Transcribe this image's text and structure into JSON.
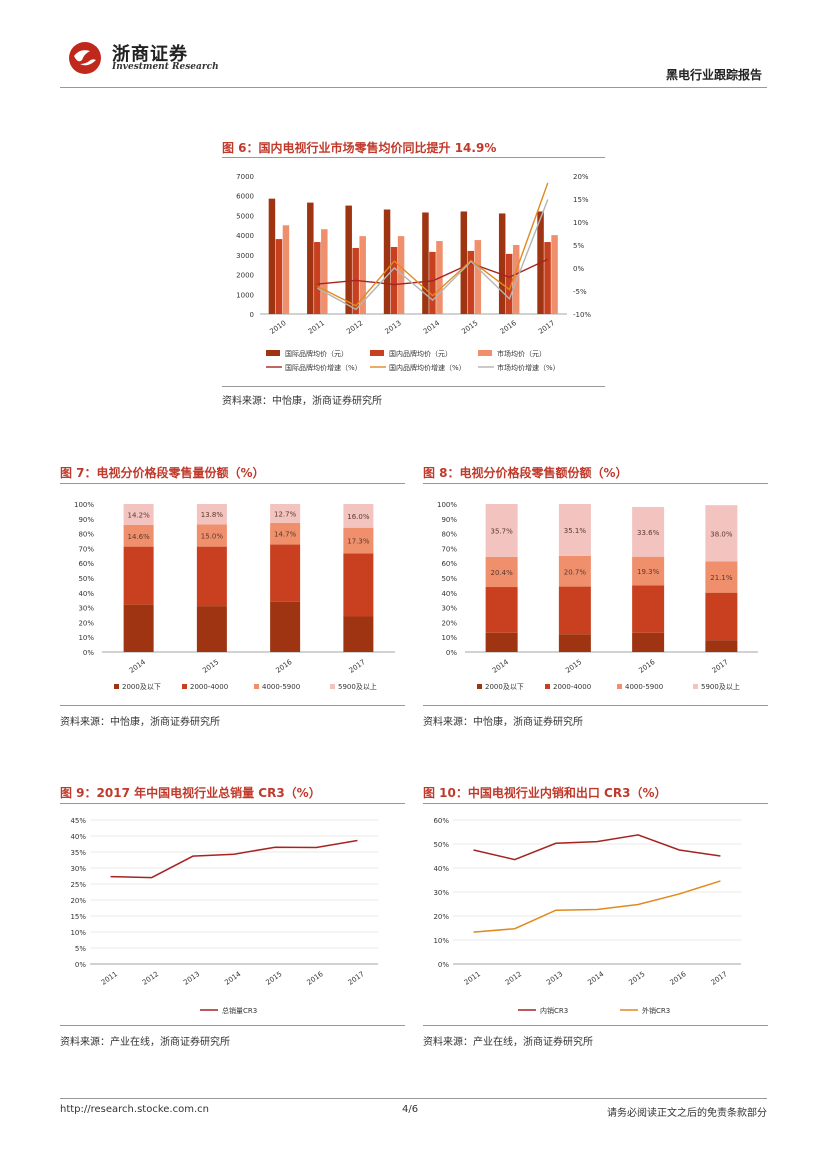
{
  "header": {
    "logo_cn": "浙商证券",
    "logo_en": "Investment Research",
    "report_type": "黑电行业跟踪报告"
  },
  "footer": {
    "url": "http://research.stocke.com.cn",
    "page": "4/6",
    "disclaimer": "请务必阅读正文之后的免责条款部分"
  },
  "colors": {
    "dark_red": "#9e3411",
    "red": "#c8401f",
    "salmon": "#ef8f6c",
    "pink": "#f3c3c0",
    "line_red": "#a52422",
    "line_orange": "#e08a1e",
    "line_gray": "#b4b4b4"
  },
  "figures": {
    "fig6": {
      "title": "图 6：国内电视行业市场零售均价同比提升 14.9%",
      "source": "资料来源：中怡康，浙商证券研究所"
    },
    "fig7": {
      "title": "图 7：电视分价格段零售量份额（%）",
      "source": "资料来源：中怡康，浙商证券研究所"
    },
    "fig8": {
      "title": "图 8：电视分价格段零售额份额（%）",
      "source": "资料来源：中怡康，浙商证券研究所"
    },
    "fig9": {
      "title": "图 9：2017 年中国电视行业总销量 CR3（%）",
      "source": "资料来源：产业在线，浙商证券研究所"
    },
    "fig10": {
      "title": "图 10：中国电视行业内销和出口 CR3（%）",
      "source": "资料来源：产业在线，浙商证券研究所"
    }
  },
  "chart_data": [
    {
      "id": "fig6",
      "type": "bar",
      "categories": [
        "2010",
        "2011",
        "2012",
        "2013",
        "2014",
        "2015",
        "2016",
        "2017"
      ],
      "series": [
        {
          "name": "国际品牌均价（元）",
          "values": [
            5850,
            5650,
            5500,
            5300,
            5150,
            5200,
            5100,
            5200
          ],
          "axis": "left"
        },
        {
          "name": "国内品牌均价（元）",
          "values": [
            3800,
            3650,
            3350,
            3400,
            3150,
            3200,
            3050,
            3650
          ],
          "axis": "left"
        },
        {
          "name": "市场均价（元）",
          "values": [
            4500,
            4300,
            3950,
            3950,
            3700,
            3750,
            3500,
            4000
          ],
          "axis": "left"
        },
        {
          "name": "国际品牌均价增速（%）",
          "type": "line",
          "values": [
            null,
            -3.5,
            -2.7,
            -3.6,
            -2.8,
            1.0,
            -2.0,
            1.9
          ],
          "axis": "right"
        },
        {
          "name": "国内品牌均价增速（%）",
          "type": "line",
          "values": [
            null,
            -4.0,
            -8.2,
            1.5,
            -6.0,
            1.6,
            -4.7,
            18.5
          ],
          "axis": "right"
        },
        {
          "name": "市场均价增速（%）",
          "type": "line",
          "values": [
            null,
            -4.4,
            -9.0,
            0,
            -7.0,
            1.4,
            -6.7,
            14.9
          ],
          "axis": "right"
        }
      ],
      "yticks_left": [
        "0",
        "1000",
        "2000",
        "3000",
        "4000",
        "5000",
        "6000",
        "7000"
      ],
      "yticks_right": [
        "-10%",
        "-5%",
        "0%",
        "5%",
        "10%",
        "15%",
        "20%"
      ],
      "ylim": [
        0,
        7000
      ],
      "y2lim": [
        -10,
        20
      ]
    },
    {
      "id": "fig7",
      "type": "bar",
      "stacked": true,
      "categories": [
        "2014",
        "2015",
        "2016",
        "2017"
      ],
      "series": [
        {
          "name": "2000及以下",
          "values": [
            32,
            31,
            34,
            24
          ]
        },
        {
          "name": "2000-4000",
          "values": [
            39.2,
            40.2,
            38.6,
            42.7
          ]
        },
        {
          "name": "4000-5900",
          "values": [
            14.6,
            15.0,
            14.7,
            17.3
          ]
        },
        {
          "name": "5900及以上",
          "values": [
            14.2,
            13.8,
            12.7,
            16.0
          ]
        }
      ],
      "data_labels": {
        "4000-5900": [
          "14.6%",
          "15.0%",
          "14.7%",
          "17.3%"
        ],
        "5900及以上": [
          "14.2%",
          "13.8%",
          "12.7%",
          "16.0%"
        ]
      },
      "yticks": [
        "0%",
        "10%",
        "20%",
        "30%",
        "40%",
        "50%",
        "60%",
        "70%",
        "80%",
        "90%",
        "100%"
      ],
      "ylim": [
        0,
        100
      ]
    },
    {
      "id": "fig8",
      "type": "bar",
      "stacked": true,
      "categories": [
        "2014",
        "2015",
        "2016",
        "2017"
      ],
      "series": [
        {
          "name": "2000及以下",
          "values": [
            13,
            12,
            13,
            8
          ]
        },
        {
          "name": "2000-4000",
          "values": [
            30.9,
            32.2,
            32.1,
            32.1
          ]
        },
        {
          "name": "4000-5900",
          "values": [
            20.4,
            20.7,
            19.3,
            21.1
          ]
        },
        {
          "name": "5900及以上",
          "values": [
            35.7,
            35.1,
            33.6,
            38.0
          ]
        }
      ],
      "data_labels": {
        "4000-5900": [
          "20.4%",
          "20.7%",
          "19.3%",
          "21.1%"
        ],
        "5900及以上": [
          "35.7%",
          "35.1%",
          "33.6%",
          "38.0%"
        ]
      },
      "yticks": [
        "0%",
        "10%",
        "20%",
        "30%",
        "40%",
        "50%",
        "60%",
        "70%",
        "80%",
        "90%",
        "100%"
      ],
      "ylim": [
        0,
        100
      ]
    },
    {
      "id": "fig9",
      "type": "line",
      "x": [
        "2011",
        "2012",
        "2013",
        "2014",
        "2015",
        "2016",
        "2017"
      ],
      "series": [
        {
          "name": "总销量CR3",
          "values": [
            27.3,
            27.0,
            33.7,
            34.3,
            36.5,
            36.4,
            38.6
          ]
        }
      ],
      "yticks": [
        "0%",
        "5%",
        "10%",
        "15%",
        "20%",
        "25%",
        "30%",
        "35%",
        "40%",
        "45%"
      ],
      "ylim": [
        0,
        45
      ]
    },
    {
      "id": "fig10",
      "type": "line",
      "x": [
        "2011",
        "2012",
        "2013",
        "2014",
        "2015",
        "2016",
        "2017"
      ],
      "series": [
        {
          "name": "内销CR3",
          "values": [
            47.5,
            43.5,
            50.3,
            51.0,
            53.8,
            47.5,
            45.0
          ]
        },
        {
          "name": "外销CR3",
          "values": [
            13.3,
            14.7,
            22.4,
            22.7,
            24.8,
            29.2,
            34.6
          ]
        }
      ],
      "yticks": [
        "0%",
        "10%",
        "20%",
        "30%",
        "40%",
        "50%",
        "60%"
      ],
      "ylim": [
        0,
        60
      ]
    }
  ]
}
